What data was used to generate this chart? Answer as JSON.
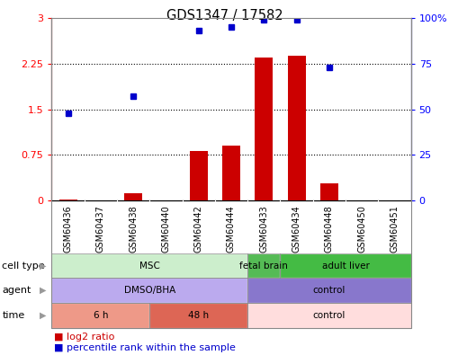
{
  "title": "GDS1347 / 17582",
  "samples": [
    "GSM60436",
    "GSM60437",
    "GSM60438",
    "GSM60440",
    "GSM60442",
    "GSM60444",
    "GSM60433",
    "GSM60434",
    "GSM60448",
    "GSM60450",
    "GSM60451"
  ],
  "log2_ratio": [
    0.02,
    0.0,
    0.12,
    0.0,
    0.82,
    0.9,
    2.35,
    2.38,
    0.28,
    0.0,
    0.0
  ],
  "percentile_rank": [
    48,
    null,
    57,
    null,
    93,
    95,
    99,
    99,
    73,
    null,
    null
  ],
  "ylim_left": [
    0,
    3
  ],
  "ylim_right": [
    0,
    100
  ],
  "yticks_left": [
    0,
    0.75,
    1.5,
    2.25,
    3
  ],
  "yticks_right": [
    0,
    25,
    50,
    75,
    100
  ],
  "bar_color": "#cc0000",
  "dot_color": "#0000cc",
  "cell_type_groups": [
    {
      "label": "MSC",
      "start": 0,
      "end": 6,
      "color": "#cceecc"
    },
    {
      "label": "fetal brain",
      "start": 6,
      "end": 7,
      "color": "#55bb55"
    },
    {
      "label": "adult liver",
      "start": 7,
      "end": 11,
      "color": "#44bb44"
    }
  ],
  "agent_groups": [
    {
      "label": "DMSO/BHA",
      "start": 0,
      "end": 6,
      "color": "#bbaaee"
    },
    {
      "label": "control",
      "start": 6,
      "end": 11,
      "color": "#8877cc"
    }
  ],
  "time_groups": [
    {
      "label": "6 h",
      "start": 0,
      "end": 3,
      "color": "#ee9988"
    },
    {
      "label": "48 h",
      "start": 3,
      "end": 6,
      "color": "#dd6655"
    },
    {
      "label": "control",
      "start": 6,
      "end": 11,
      "color": "#ffdddd"
    }
  ],
  "row_labels": [
    "cell type",
    "agent",
    "time"
  ],
  "tick_bg_color": "#cccccc",
  "border_color": "#888888"
}
